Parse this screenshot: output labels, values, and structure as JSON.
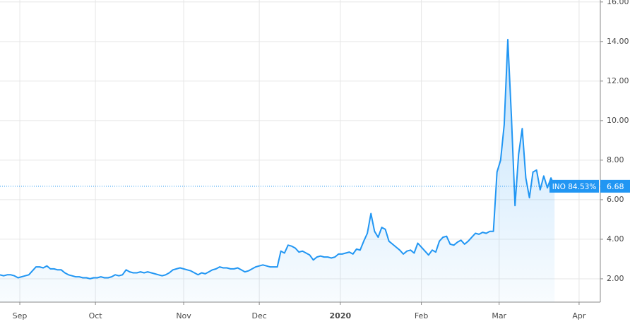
{
  "chart_data": {
    "type": "area",
    "values": [
      2.2,
      2.15,
      2.2,
      2.2,
      2.15,
      2.05,
      2.1,
      2.15,
      2.2,
      2.4,
      2.6,
      2.6,
      2.55,
      2.65,
      2.5,
      2.5,
      2.45,
      2.45,
      2.3,
      2.2,
      2.15,
      2.1,
      2.1,
      2.05,
      2.05,
      2.0,
      2.05,
      2.05,
      2.1,
      2.05,
      2.05,
      2.1,
      2.2,
      2.15,
      2.2,
      2.45,
      2.35,
      2.3,
      2.3,
      2.35,
      2.3,
      2.35,
      2.3,
      2.25,
      2.2,
      2.15,
      2.2,
      2.3,
      2.45,
      2.5,
      2.55,
      2.5,
      2.45,
      2.4,
      2.3,
      2.2,
      2.3,
      2.25,
      2.35,
      2.45,
      2.5,
      2.6,
      2.55,
      2.55,
      2.5,
      2.5,
      2.55,
      2.45,
      2.35,
      2.4,
      2.5,
      2.6,
      2.65,
      2.7,
      2.65,
      2.6,
      2.6,
      2.6,
      3.4,
      3.3,
      3.7,
      3.65,
      3.55,
      3.35,
      3.4,
      3.3,
      3.2,
      2.95,
      3.1,
      3.15,
      3.1,
      3.1,
      3.05,
      3.1,
      3.25,
      3.25,
      3.3,
      3.35,
      3.25,
      3.5,
      3.45,
      3.9,
      4.3,
      5.3,
      4.4,
      4.1,
      4.6,
      4.5,
      3.9,
      3.75,
      3.6,
      3.45,
      3.25,
      3.4,
      3.45,
      3.3,
      3.8,
      3.6,
      3.4,
      3.2,
      3.45,
      3.35,
      3.9,
      4.1,
      4.15,
      3.75,
      3.7,
      3.85,
      3.95,
      3.75,
      3.9,
      4.1,
      4.3,
      4.25,
      4.35,
      4.3,
      4.4,
      4.4,
      7.4,
      8.0,
      9.8,
      14.1,
      10.2,
      5.7,
      8.3,
      9.6,
      7.1,
      6.1,
      7.4,
      7.5,
      6.5,
      7.2,
      6.6,
      7.1,
      6.68
    ],
    "color": "#2196f3",
    "xlim": [
      0,
      166.7
    ],
    "xticks": [
      {
        "value": 5.5,
        "label": "Sep"
      },
      {
        "value": 26.5,
        "label": "Oct"
      },
      {
        "value": 51,
        "label": "Nov"
      },
      {
        "value": 72,
        "label": "Dec"
      },
      {
        "value": 94.5,
        "label": "2020"
      },
      {
        "value": 117,
        "label": "Feb"
      },
      {
        "value": 138.6,
        "label": "Mar"
      },
      {
        "value": 160.8,
        "label": "Apr"
      }
    ],
    "ylim": [
      0.82,
      16.1
    ],
    "yticks": [
      {
        "value": 2,
        "label": "2.00"
      },
      {
        "value": 4,
        "label": "4.00"
      },
      {
        "value": 6,
        "label": "6.00"
      },
      {
        "value": 8,
        "label": "8.00"
      },
      {
        "value": 10,
        "label": "10.00"
      },
      {
        "value": 12,
        "label": "12.00"
      },
      {
        "value": 14,
        "label": "14.00"
      },
      {
        "value": 16,
        "label": "16.00"
      }
    ],
    "grid": true,
    "annotation": "INO 84.53%",
    "last_value": 6.68
  }
}
